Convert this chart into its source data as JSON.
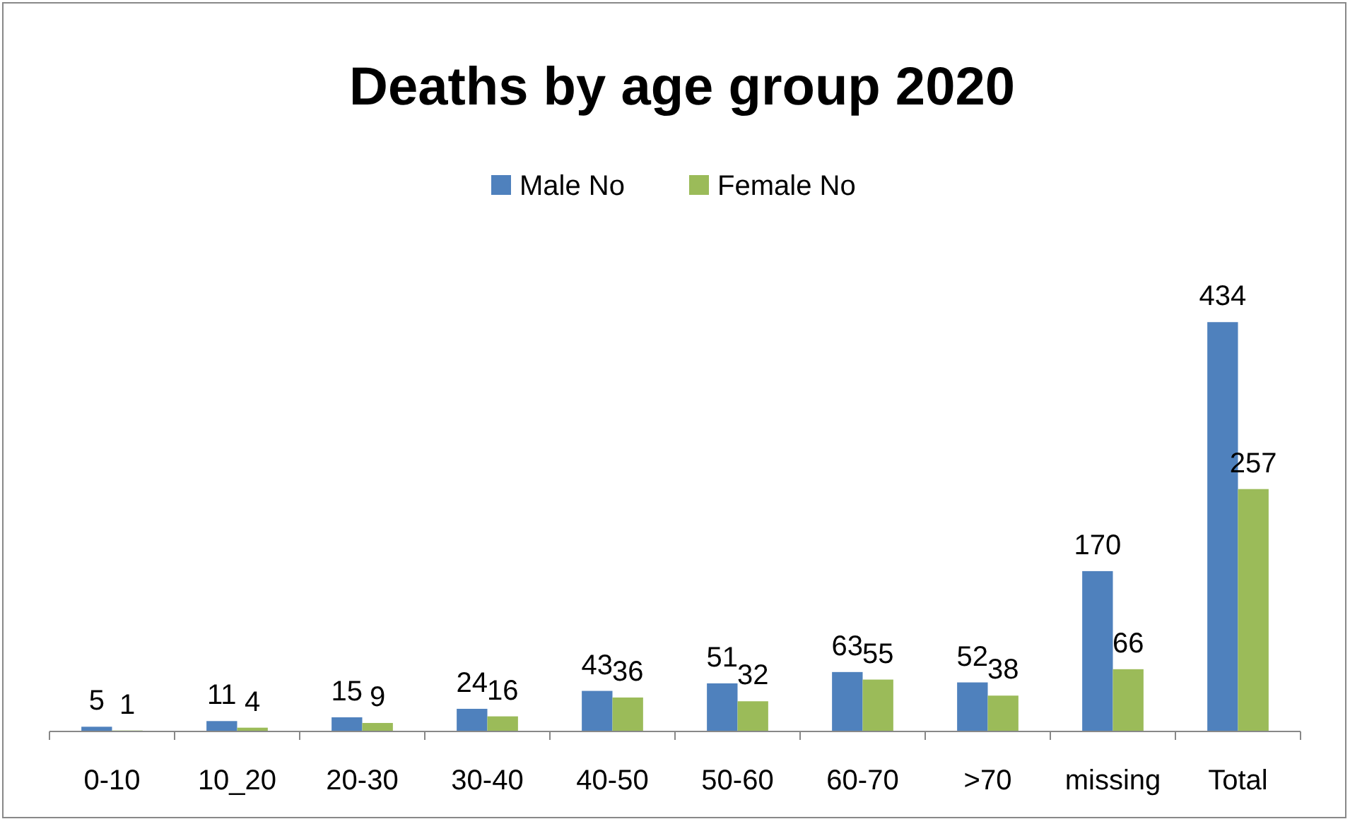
{
  "chart_data": {
    "type": "bar",
    "title": "Deaths by age group 2020",
    "categories": [
      "0-10",
      "10_20",
      "20-30",
      "30-40",
      "40-50",
      "50-60",
      "60-70",
      ">70",
      "missing",
      "Total"
    ],
    "series": [
      {
        "name": "Male No",
        "color": "#4f81bd",
        "values": [
          5,
          11,
          15,
          24,
          43,
          51,
          63,
          52,
          170,
          434
        ]
      },
      {
        "name": "Female No",
        "color": "#9bbb59",
        "values": [
          1,
          4,
          9,
          16,
          36,
          32,
          55,
          38,
          66,
          257
        ]
      }
    ],
    "data_labels": true,
    "legend": "top"
  }
}
